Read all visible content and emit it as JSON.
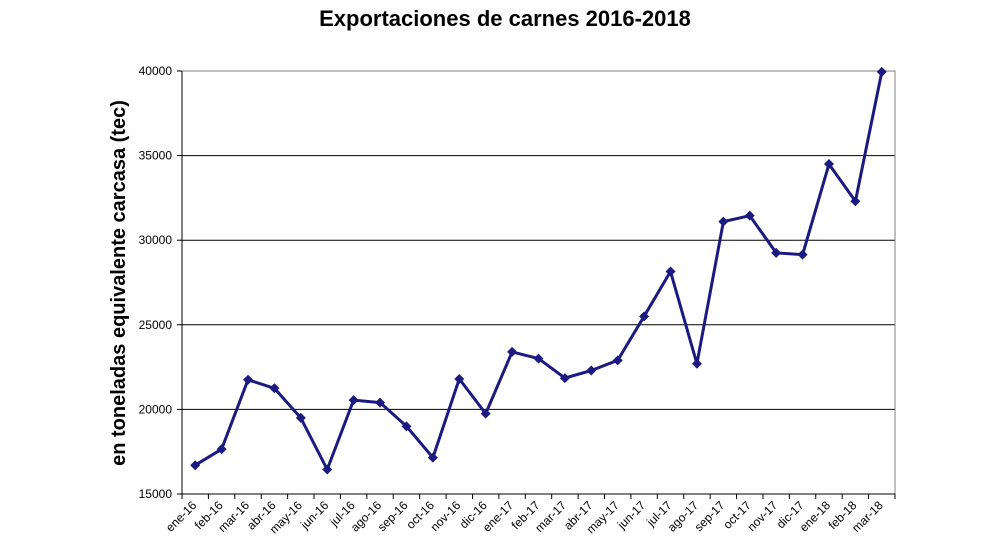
{
  "chart_data": {
    "type": "line",
    "title": "Exportaciones de carnes 2016-2018",
    "xlabel": "",
    "ylabel": "en toneladas equivalente carcasa (tec)",
    "ylim": [
      15000,
      40000
    ],
    "yticks": [
      15000,
      20000,
      25000,
      30000,
      35000,
      40000
    ],
    "y_tick_labels": [
      "15000",
      "20000",
      "25000",
      "30000",
      "35000",
      "40000"
    ],
    "grid": true,
    "categories": [
      "ene-16",
      "feb-16",
      "mar-16",
      "abr-16",
      "may-16",
      "jun-16",
      "jul-16",
      "ago-16",
      "sep-16",
      "oct-16",
      "nov-16",
      "dic-16",
      "ene-17",
      "feb-17",
      "mar-17",
      "abr-17",
      "may-17",
      "jun-17",
      "jul-17",
      "ago-17",
      "sep-17",
      "oct-17",
      "nov-17",
      "dic-17",
      "ene-18",
      "feb-18",
      "mar-18"
    ],
    "series": [
      {
        "values": [
          16700,
          17650,
          21750,
          21250,
          19500,
          16450,
          20550,
          20400,
          19000,
          17150,
          21800,
          19750,
          23400,
          23000,
          21850,
          22300,
          22900,
          25500,
          28150,
          22700,
          31100,
          31450,
          29250,
          29150,
          34500,
          32300,
          39950
        ],
        "color": "#1a1a80"
      }
    ]
  }
}
